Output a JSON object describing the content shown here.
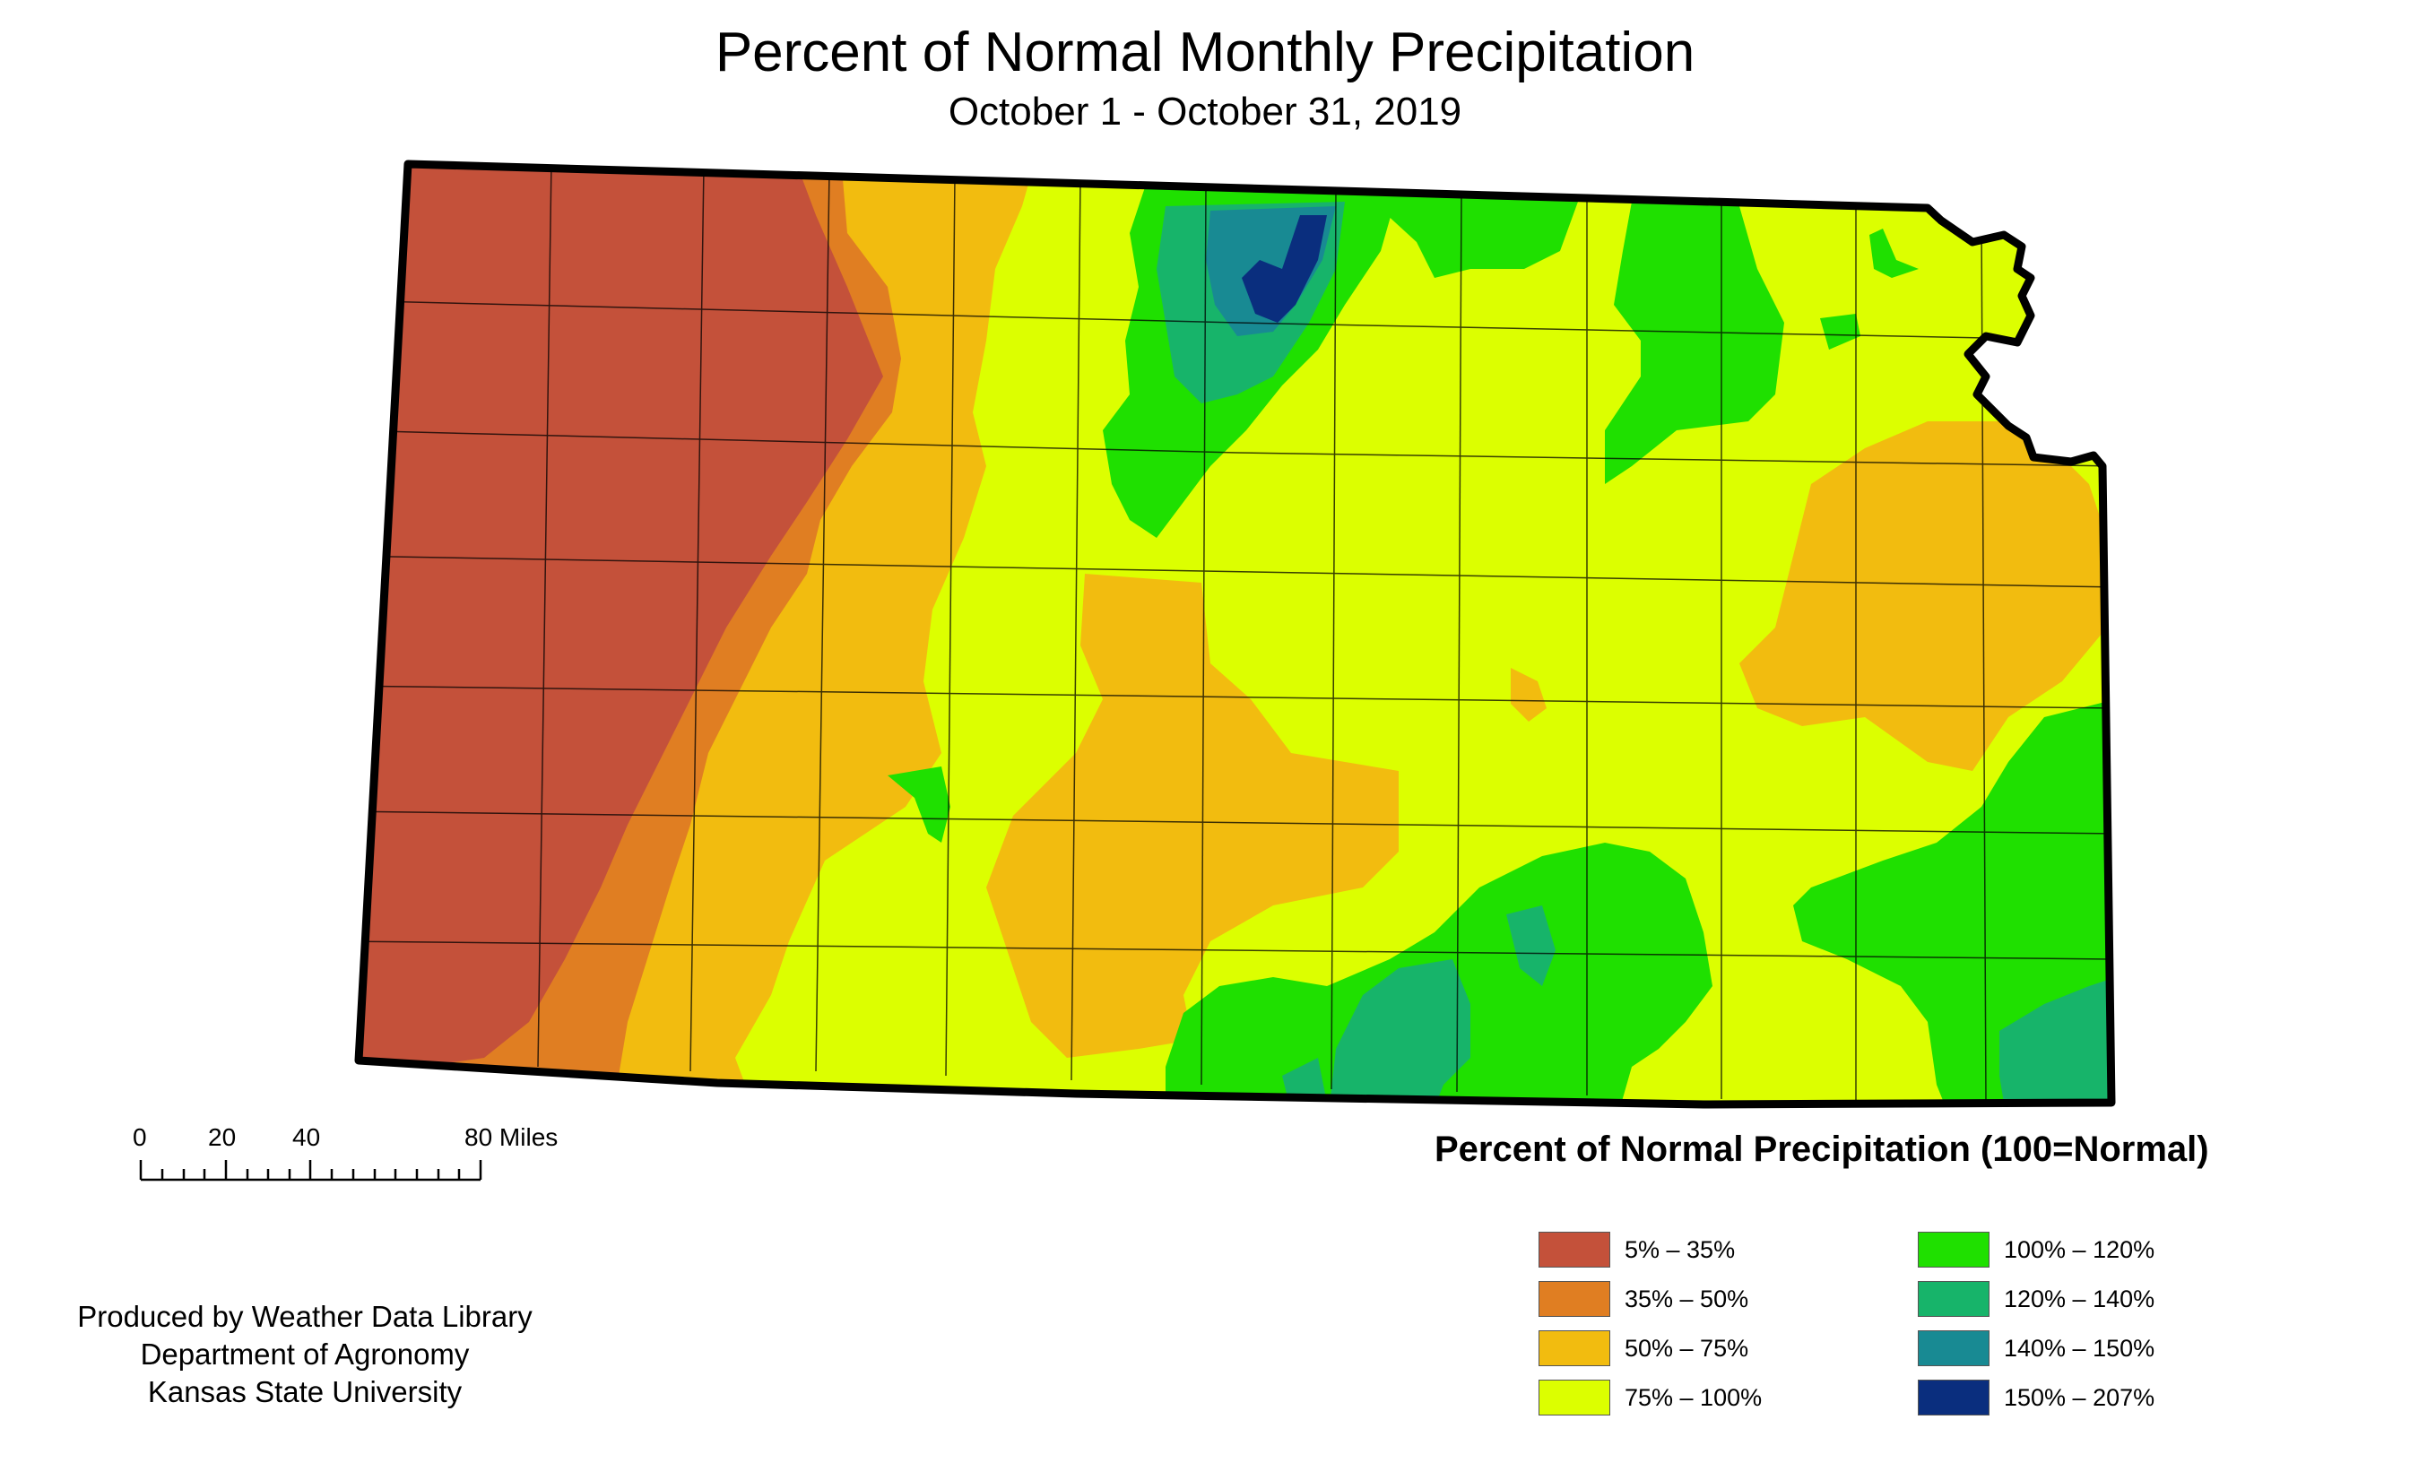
{
  "title": "Percent of Normal Monthly Precipitation",
  "subtitle": "October 1 - October 31, 2019",
  "legend": {
    "title": "Percent of Normal Precipitation (100=Normal)",
    "items": [
      {
        "label": "5% – 35%",
        "color": "#c4513a"
      },
      {
        "label": "35% – 50%",
        "color": "#e07e22"
      },
      {
        "label": "50% – 75%",
        "color": "#f2bc0f"
      },
      {
        "label": "75% – 100%",
        "color": "#dcff00"
      },
      {
        "label": "100% – 120%",
        "color": "#1fe000"
      },
      {
        "label": "120% – 140%",
        "color": "#17b46a"
      },
      {
        "label": "140% – 150%",
        "color": "#188a93"
      },
      {
        "label": "150% – 207%",
        "color": "#0a2e7e"
      }
    ]
  },
  "scale_bar": {
    "labels": [
      "0",
      "20",
      "40",
      "80 Miles"
    ]
  },
  "credits": [
    "Produced by Weather Data Library",
    "Department of Agronomy",
    "Kansas State University"
  ]
}
